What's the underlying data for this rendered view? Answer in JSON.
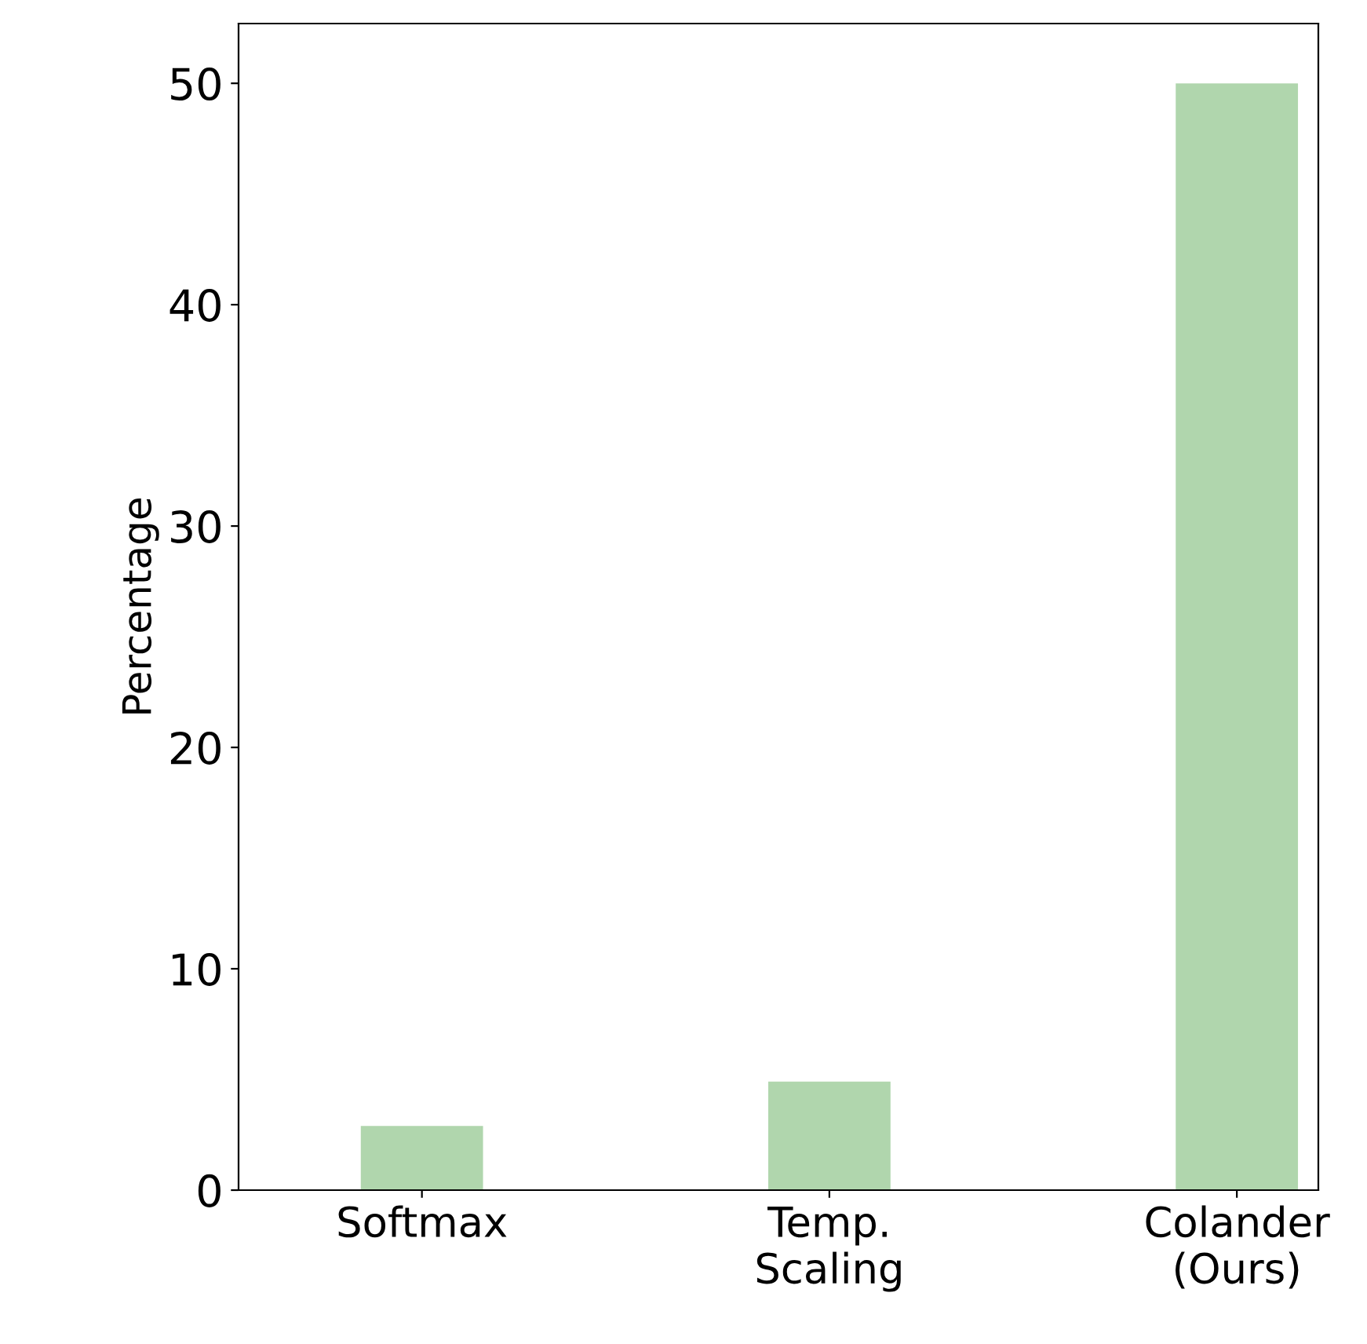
{
  "chart_data": {
    "type": "bar",
    "ylabel": "Percentage",
    "categories": [
      "Softmax",
      "Temp.\nScaling",
      "Colander\n(Ours)"
    ],
    "values": [
      2.9,
      4.9,
      50
    ],
    "color": "#b0d6ad",
    "ylim": [
      0,
      52.7
    ],
    "yticks": [
      0,
      10,
      20,
      30,
      40,
      50
    ],
    "grid": false
  }
}
